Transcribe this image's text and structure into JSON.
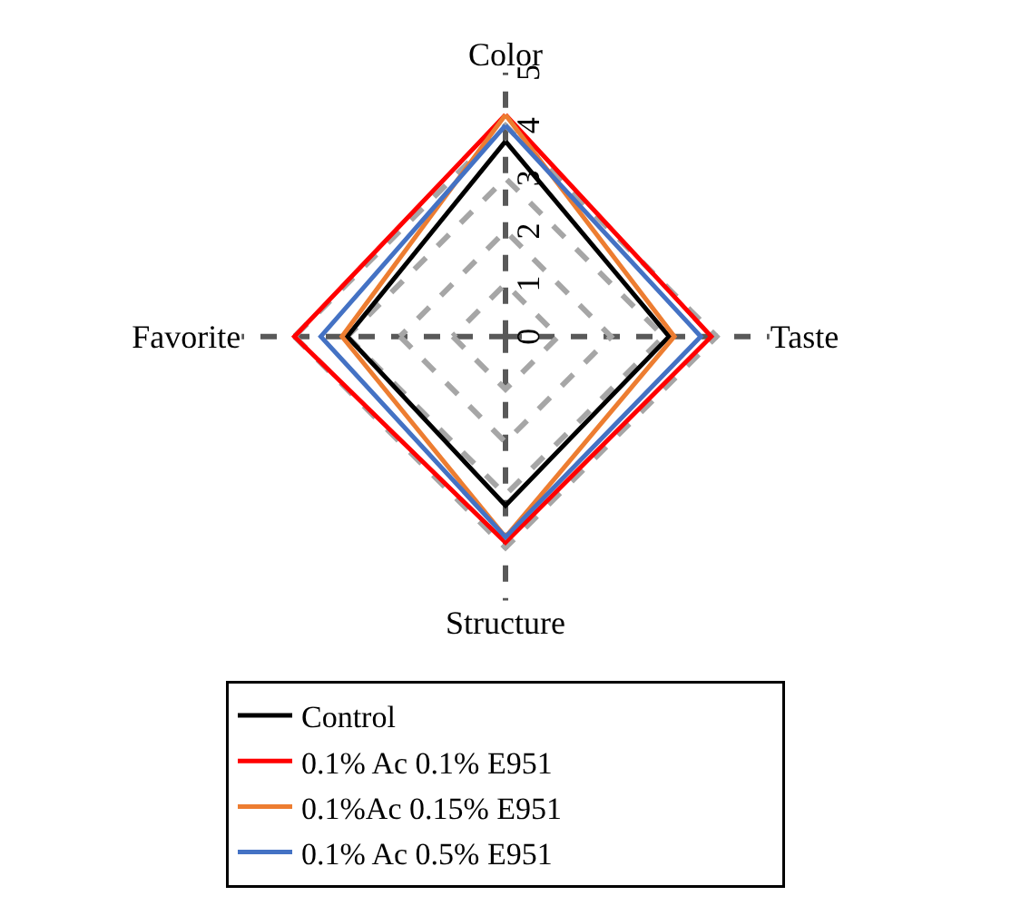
{
  "chart_data": {
    "type": "radar",
    "categories": [
      "Color",
      "Taste",
      "Structure",
      "Favorite"
    ],
    "series": [
      {
        "name": "Control",
        "color": "#000000",
        "values": [
          3.7,
          3.1,
          3.2,
          3.0
        ]
      },
      {
        "name": "0.1% Ac 0.1% E951",
        "color": "#ff0000",
        "values": [
          4.2,
          3.9,
          3.9,
          4.0
        ]
      },
      {
        "name": "0.1%Ac 0.15% E951",
        "color": "#ed7d31",
        "values": [
          4.2,
          3.2,
          3.8,
          3.1
        ]
      },
      {
        "name": "0.1% Ac 0.5% E951",
        "color": "#4472c4",
        "values": [
          4.0,
          3.7,
          3.8,
          3.5
        ]
      }
    ],
    "ylim": [
      0,
      5
    ],
    "yticks": [
      0,
      1,
      2,
      3,
      4,
      5
    ],
    "grid": true,
    "legend": "bottom"
  }
}
